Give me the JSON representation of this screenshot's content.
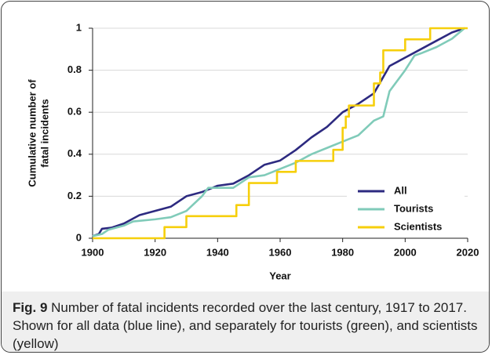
{
  "chart_data": {
    "type": "line",
    "xlabel": "Year",
    "ylabel": [
      "Cumulative number of",
      "fatal incidents"
    ],
    "caption_label": "Fig. 9",
    "caption": "Number of fatal incidents recorded over the last century, 1917 to 2017. Shown for all data (blue line), and separately for tourists (green), and scientists (yellow)",
    "xlim": [
      1900,
      2020
    ],
    "xticks": [
      1900,
      1920,
      1940,
      1960,
      1980,
      2000,
      2020
    ],
    "ylim": [
      0,
      1
    ],
    "yticks": [
      0,
      0.2,
      0.4,
      0.6,
      0.8,
      1
    ],
    "grid": true,
    "legend": "lower right",
    "series": [
      {
        "name": "All",
        "color": "#2d2a80",
        "x": [
          1900,
          1902,
          1903,
          1906,
          1910,
          1915,
          1920,
          1925,
          1930,
          1935,
          1940,
          1945,
          1950,
          1955,
          1960,
          1965,
          1970,
          1975,
          1980,
          1985,
          1990,
          1995,
          2000,
          2005,
          2010,
          2015,
          2019
        ],
        "values": [
          0.01,
          0.02,
          0.045,
          0.05,
          0.07,
          0.11,
          0.13,
          0.15,
          0.2,
          0.22,
          0.25,
          0.26,
          0.3,
          0.35,
          0.37,
          0.42,
          0.48,
          0.53,
          0.6,
          0.64,
          0.69,
          0.82,
          0.86,
          0.9,
          0.94,
          0.98,
          1
        ]
      },
      {
        "name": "Tourists",
        "color": "#80cbb9",
        "x": [
          1900,
          1903,
          1905,
          1910,
          1913,
          1920,
          1925,
          1930,
          1935,
          1937,
          1945,
          1950,
          1955,
          1960,
          1965,
          1970,
          1975,
          1980,
          1985,
          1990,
          1993,
          1995,
          2000,
          2003,
          2005,
          2010,
          2015,
          2019
        ],
        "values": [
          0.01,
          0.02,
          0.04,
          0.06,
          0.08,
          0.09,
          0.1,
          0.13,
          0.2,
          0.24,
          0.24,
          0.29,
          0.3,
          0.33,
          0.36,
          0.4,
          0.43,
          0.46,
          0.49,
          0.56,
          0.58,
          0.7,
          0.8,
          0.87,
          0.88,
          0.91,
          0.95,
          1
        ]
      },
      {
        "name": "Scientists",
        "color": "#f6cf0c",
        "x": [
          1900,
          1923,
          1923,
          1930,
          1930,
          1946,
          1946,
          1950,
          1950,
          1959,
          1959,
          1965,
          1965,
          1977,
          1977,
          1980,
          1980,
          1981,
          1981,
          1982,
          1982,
          1990,
          1990,
          1992,
          1992,
          1993,
          1993,
          2000,
          2000,
          2008,
          2008,
          2020
        ],
        "values": [
          0,
          0,
          0.053,
          0.053,
          0.105,
          0.105,
          0.158,
          0.158,
          0.263,
          0.263,
          0.316,
          0.316,
          0.368,
          0.368,
          0.421,
          0.421,
          0.526,
          0.526,
          0.579,
          0.579,
          0.632,
          0.632,
          0.737,
          0.737,
          0.789,
          0.789,
          0.895,
          0.895,
          0.947,
          0.947,
          1,
          1
        ]
      }
    ]
  }
}
